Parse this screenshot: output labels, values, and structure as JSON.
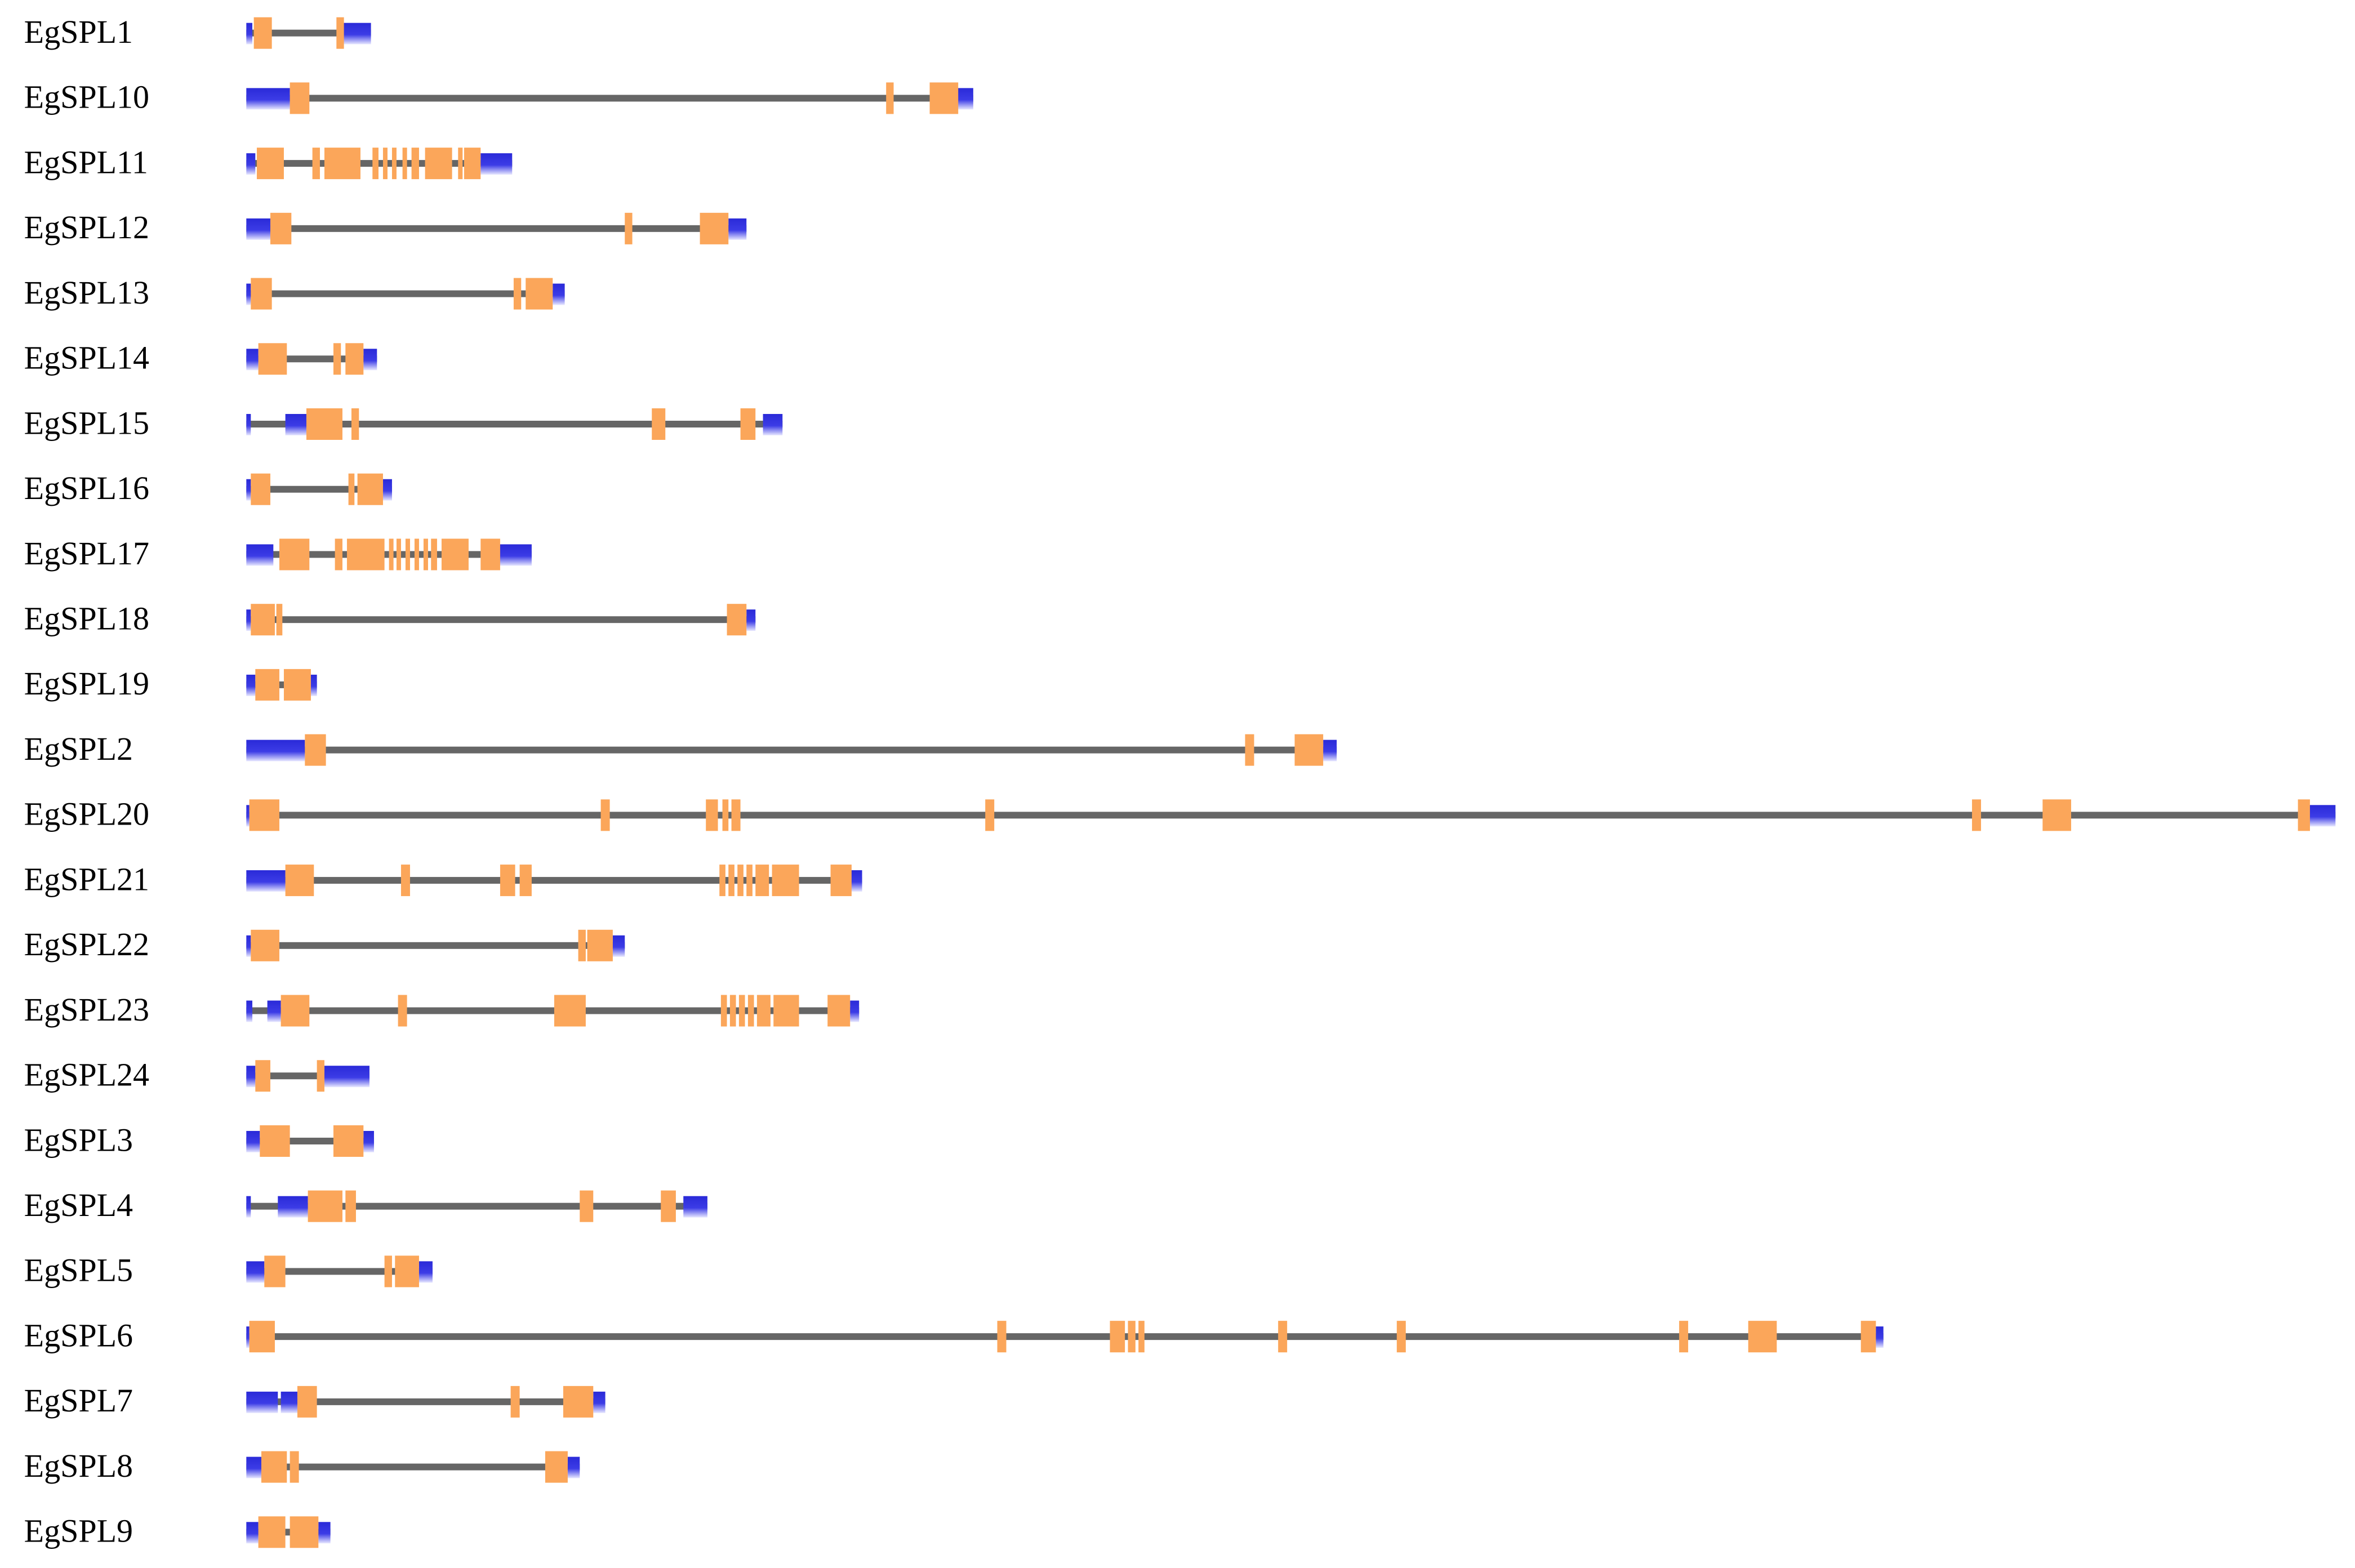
{
  "labels": [
    "EgSPL1",
    "EgSPL10",
    "EgSPL11",
    "EgSPL12",
    "EgSPL13",
    "EgSPL14",
    "EgSPL15",
    "EgSPL16",
    "EgSPL17",
    "EgSPL18",
    "EgSPL19",
    "EgSPL2",
    "EgSPL20",
    "EgSPL21",
    "EgSPL22",
    "EgSPL23",
    "EgSPL24",
    "EgSPL3",
    "EgSPL4",
    "EgSPL5",
    "EgSPL6",
    "EgSPL7",
    "EgSPL8",
    "EgSPL9"
  ]
}
